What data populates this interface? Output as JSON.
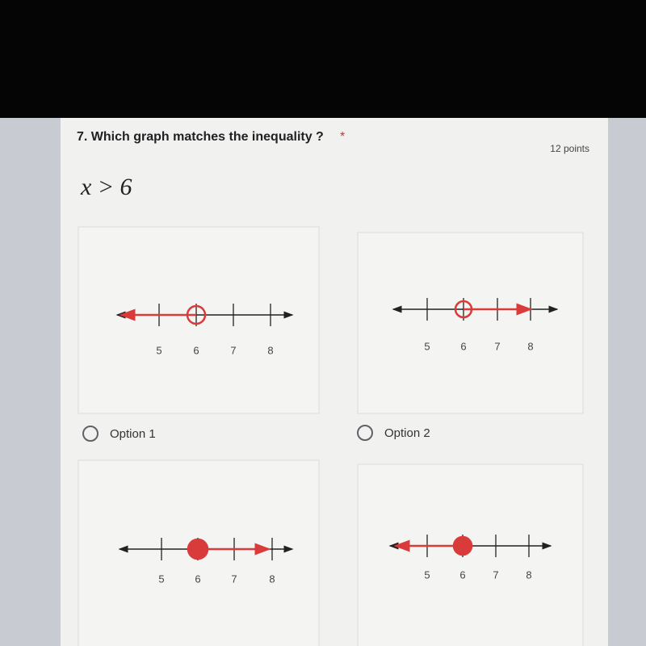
{
  "question": {
    "title": "7. Which graph matches the inequality ?",
    "required_mark": "*",
    "points": "12 points",
    "expression": "x > 6"
  },
  "graphs": [
    {
      "tick_labels": [
        "5",
        "6",
        "7",
        "8"
      ]
    },
    {
      "tick_labels": [
        "5",
        "6",
        "7",
        "8"
      ]
    },
    {
      "tick_labels": [
        "5",
        "6",
        "7",
        "8"
      ]
    },
    {
      "tick_labels": [
        "5",
        "6",
        "7",
        "8"
      ]
    }
  ],
  "option_labels": [
    "Option 1",
    "Option 2"
  ]
}
